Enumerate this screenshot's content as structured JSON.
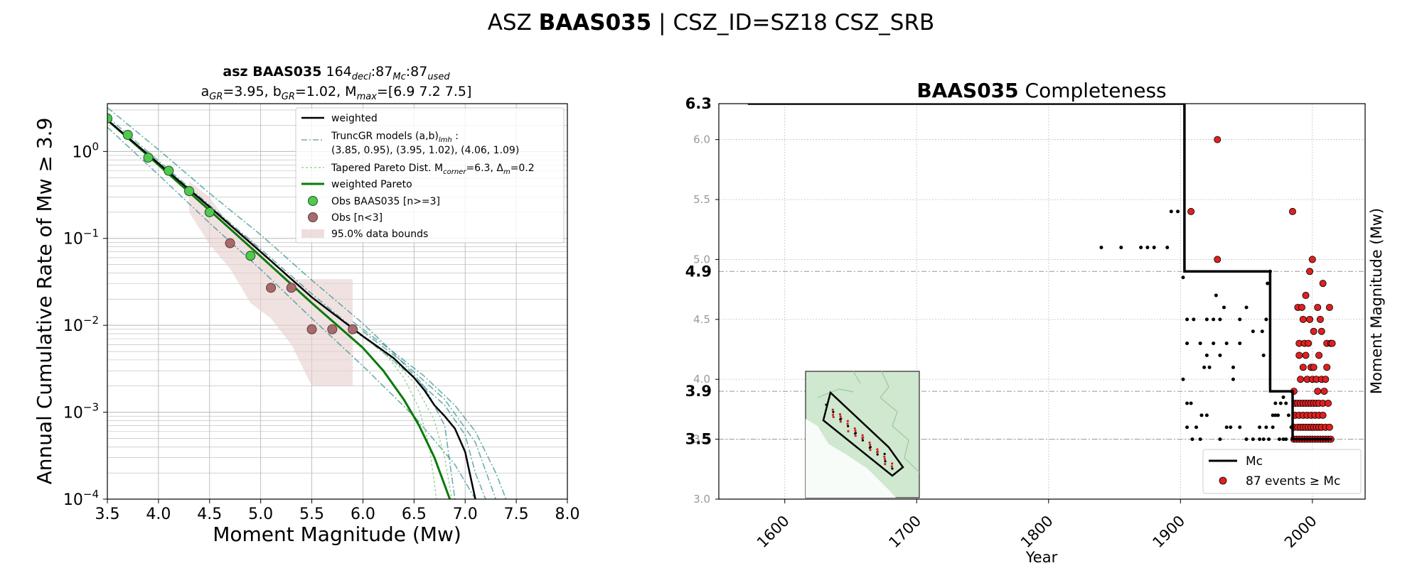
{
  "figure": {
    "suptitle": {
      "prefix": "ASZ ",
      "bold": "BAAS035",
      "suffix": " | CSZ_ID=SZ18 CSZ_SRB"
    }
  },
  "colors": {
    "weighted": "#000000",
    "trunc_gr": "#2e8b8b",
    "tapered": "#9bd39b",
    "weighted_pareto": "#0a7a0a",
    "obs_main": "#4fc94f",
    "obs_few": "#a86b6b",
    "band": "#e8cfcf",
    "mc_line": "#000000",
    "events": "#e02020",
    "inset_land": "#cfe8cf"
  },
  "chart_data": [
    {
      "type": "line",
      "id": "magnitude_frequency",
      "title_line1": {
        "bold": "asz BAAS035",
        "rest": "  164",
        "sub1": "decl",
        "mid1": ":87",
        "sub2": "Mc",
        "mid2": ":87",
        "sub3": "used"
      },
      "title_line2": {
        "a": "a",
        "a_sub": "GR",
        "a_val": "=3.95,  ",
        "b": "b",
        "b_sub": "GR",
        "b_val": "=1.02, ",
        "m": "M",
        "m_sub": "max",
        "m_val": "=[6.9 7.2 7.5]"
      },
      "xlabel": "Moment Magnitude (Mw)",
      "ylabel": "Annual Cumulative Rate of Mw  ≥  3.9",
      "xlim": [
        3.5,
        8.0
      ],
      "ylim_log10": [
        -4,
        0.55
      ],
      "xticks": [
        "3.5",
        "4.0",
        "4.5",
        "5.0",
        "5.5",
        "6.0",
        "6.5",
        "7.0",
        "7.5",
        "8.0"
      ],
      "yticks": [
        {
          "base": "10",
          "exp": "0"
        },
        {
          "base": "10",
          "exp": "−1"
        },
        {
          "base": "10",
          "exp": "−2"
        },
        {
          "base": "10",
          "exp": "−3"
        },
        {
          "base": "10",
          "exp": "−4"
        }
      ],
      "grid": true,
      "legend_position": "top-right",
      "legend": [
        {
          "label": "weighted"
        },
        {
          "label": "TruncGR models (a,b)",
          "sub": "lmh",
          "tail": " :"
        },
        {
          "label": " (3.85, 0.95), (3.95, 1.02), (4.06, 1.09)"
        },
        {
          "label": "Tapered Pareto Dist. M",
          "sub": "corner",
          "tail": "=6.3, Δ",
          "sub2": "m",
          "tail2": "=0.2"
        },
        {
          "label": "weighted Pareto"
        },
        {
          "label": "Obs BAAS035 [n>=3]"
        },
        {
          "label": "Obs [n<3]"
        },
        {
          "label": "95.0% data bounds"
        }
      ],
      "obs_main": [
        [
          3.5,
          2.4
        ],
        [
          3.7,
          1.55
        ],
        [
          3.9,
          0.85
        ],
        [
          4.1,
          0.6
        ],
        [
          4.3,
          0.35
        ],
        [
          4.5,
          0.2
        ],
        [
          4.9,
          0.063
        ]
      ],
      "obs_few": [
        [
          4.7,
          0.088
        ],
        [
          5.1,
          0.027
        ],
        [
          5.3,
          0.027
        ],
        [
          5.5,
          0.009
        ],
        [
          5.7,
          0.009
        ],
        [
          5.9,
          0.009
        ]
      ],
      "band": {
        "upper": [
          [
            4.3,
            0.45
          ],
          [
            4.5,
            0.3
          ],
          [
            4.7,
            0.14
          ],
          [
            4.9,
            0.1
          ],
          [
            5.1,
            0.05
          ],
          [
            5.3,
            0.034
          ],
          [
            5.5,
            0.034
          ],
          [
            5.7,
            0.034
          ],
          [
            5.9,
            0.034
          ]
        ],
        "lower": [
          [
            5.9,
            0.002
          ],
          [
            5.7,
            0.002
          ],
          [
            5.5,
            0.002
          ],
          [
            5.3,
            0.006
          ],
          [
            5.1,
            0.012
          ],
          [
            4.9,
            0.018
          ],
          [
            4.7,
            0.045
          ],
          [
            4.5,
            0.085
          ],
          [
            4.3,
            0.2
          ]
        ]
      },
      "series": [
        {
          "kind": "weighted",
          "values": [
            [
              3.5,
              2.3
            ],
            [
              4.0,
              0.73
            ],
            [
              4.5,
              0.23
            ],
            [
              5.0,
              0.07
            ],
            [
              5.5,
              0.021
            ],
            [
              6.0,
              0.0075
            ],
            [
              6.3,
              0.0042
            ],
            [
              6.5,
              0.0025
            ],
            [
              6.6,
              0.0018
            ],
            [
              6.7,
              0.0012
            ],
            [
              6.8,
              0.0009
            ],
            [
              6.9,
              0.00065
            ],
            [
              7.0,
              0.00035
            ],
            [
              7.1,
              0.0001
            ]
          ]
        },
        {
          "kind": "weighted_pareto",
          "values": [
            [
              3.5,
              2.3
            ],
            [
              4.0,
              0.7
            ],
            [
              4.5,
              0.21
            ],
            [
              5.0,
              0.062
            ],
            [
              5.5,
              0.018
            ],
            [
              6.0,
              0.0055
            ],
            [
              6.2,
              0.003
            ],
            [
              6.4,
              0.0014
            ],
            [
              6.55,
              0.0007
            ],
            [
              6.7,
              0.0003
            ],
            [
              6.85,
              0.0001
            ]
          ]
        },
        {
          "kind": "trunc_gr",
          "values": [
            [
              3.5,
              3.2
            ],
            [
              4.0,
              1.05
            ],
            [
              4.5,
              0.33
            ],
            [
              5.0,
              0.11
            ],
            [
              5.5,
              0.033
            ],
            [
              6.0,
              0.0105
            ],
            [
              6.3,
              0.0048
            ],
            [
              6.6,
              0.002
            ],
            [
              6.8,
              0.0007
            ],
            [
              6.9,
              0.0001
            ]
          ]
        },
        {
          "kind": "trunc_gr",
          "values": [
            [
              3.5,
              2.5
            ],
            [
              4.0,
              0.78
            ],
            [
              4.5,
              0.24
            ],
            [
              5.0,
              0.075
            ],
            [
              5.5,
              0.023
            ],
            [
              6.0,
              0.0075
            ],
            [
              6.5,
              0.0025
            ],
            [
              6.8,
              0.0012
            ],
            [
              7.0,
              0.00055
            ],
            [
              7.1,
              0.0002
            ],
            [
              7.2,
              0.0001
            ]
          ]
        },
        {
          "kind": "trunc_gr",
          "values": [
            [
              3.5,
              1.9
            ],
            [
              4.0,
              0.54
            ],
            [
              4.5,
              0.15
            ],
            [
              5.0,
              0.044
            ],
            [
              5.5,
              0.012
            ],
            [
              6.0,
              0.0034
            ],
            [
              6.5,
              0.0009
            ],
            [
              6.9,
              0.00025
            ],
            [
              7.1,
              0.0001
            ]
          ]
        },
        {
          "kind": "trunc_gr",
          "values": [
            [
              5.9,
              0.011
            ],
            [
              6.3,
              0.0049
            ],
            [
              6.6,
              0.0026
            ],
            [
              6.9,
              0.0012
            ],
            [
              7.1,
              0.0006
            ],
            [
              7.3,
              0.0002
            ],
            [
              7.4,
              0.0001
            ]
          ]
        },
        {
          "kind": "trunc_gr",
          "values": [
            [
              6.0,
              0.0085
            ],
            [
              6.4,
              0.0037
            ],
            [
              6.8,
              0.0014
            ],
            [
              7.1,
              0.00045
            ],
            [
              7.3,
              0.0001
            ]
          ]
        },
        {
          "kind": "tapered",
          "values": [
            [
              5.9,
              0.0088
            ],
            [
              6.2,
              0.005
            ],
            [
              6.4,
              0.0025
            ],
            [
              6.55,
              0.0011
            ],
            [
              6.65,
              0.0004
            ],
            [
              6.72,
              0.0001
            ]
          ]
        },
        {
          "kind": "tapered",
          "values": [
            [
              5.9,
              0.009
            ],
            [
              6.2,
              0.0052
            ],
            [
              6.5,
              0.0022
            ],
            [
              6.7,
              0.0008
            ],
            [
              6.8,
              0.0003
            ],
            [
              6.87,
              0.0001
            ]
          ]
        }
      ]
    },
    {
      "type": "scatter",
      "id": "completeness",
      "title": {
        "bold": "BAAS035",
        "rest": " Completeness"
      },
      "xlabel": "Year",
      "ylabel": "Moment Magnitude (Mw)",
      "xlim": [
        1550,
        2040
      ],
      "ylim": [
        3.0,
        6.3
      ],
      "xticks": [
        "1600",
        "1700",
        "1800",
        "1900",
        "2000"
      ],
      "yticks_small": [
        "3.0",
        "3.5",
        "4.0",
        "4.5",
        "5.0",
        "5.5",
        "6.0"
      ],
      "yticks_bold": [
        "6.3",
        "4.9",
        "3.9",
        "3.5"
      ],
      "grid": true,
      "legend_position": "bottom-right",
      "legend": [
        {
          "label": "Mc"
        },
        {
          "label": "87 events ≥ Mc"
        }
      ],
      "mc_step": [
        [
          1572,
          6.3
        ],
        [
          1903,
          6.3
        ],
        [
          1903,
          4.9
        ],
        [
          1968,
          4.9
        ],
        [
          1968,
          3.9
        ],
        [
          1985,
          3.9
        ],
        [
          1985,
          3.5
        ],
        [
          2015,
          3.5
        ]
      ],
      "events_above_mc": [
        [
          1928,
          6.0
        ],
        [
          1908,
          5.4
        ],
        [
          1985,
          5.4
        ],
        [
          1928,
          5.0
        ],
        [
          2000,
          5.0
        ],
        [
          1998,
          4.9
        ],
        [
          1989,
          4.6
        ],
        [
          1992,
          4.6
        ],
        [
          2004,
          4.6
        ],
        [
          2013,
          4.6
        ],
        [
          1995,
          4.7
        ],
        [
          2008,
          4.8
        ],
        [
          1993,
          4.5
        ],
        [
          1998,
          4.5
        ],
        [
          2001,
          4.4
        ],
        [
          2007,
          4.4
        ],
        [
          1990,
          4.3
        ],
        [
          1994,
          4.3
        ],
        [
          2011,
          4.3
        ],
        [
          2014,
          4.3
        ],
        [
          1995,
          4.2
        ],
        [
          2005,
          4.2
        ],
        [
          1999,
          4.1
        ],
        [
          2001,
          4.1
        ],
        [
          1991,
          4.0
        ],
        [
          1996,
          4.0
        ],
        [
          2000,
          4.0
        ],
        [
          2003,
          4.0
        ],
        [
          2007,
          4.0
        ],
        [
          2010,
          4.0
        ],
        [
          1986,
          3.9
        ],
        [
          2004,
          3.9
        ],
        [
          1987,
          3.8
        ],
        [
          1989,
          3.8
        ],
        [
          1991,
          3.8
        ],
        [
          1993,
          3.8
        ],
        [
          1995,
          3.8
        ],
        [
          1997,
          3.8
        ],
        [
          1999,
          3.8
        ],
        [
          2001,
          3.8
        ],
        [
          2003,
          3.8
        ],
        [
          2005,
          3.8
        ],
        [
          2008,
          3.8
        ],
        [
          2012,
          3.8
        ],
        [
          1987,
          3.7
        ],
        [
          1990,
          3.7
        ],
        [
          1993,
          3.7
        ],
        [
          1996,
          3.7
        ],
        [
          1999,
          3.7
        ],
        [
          2002,
          3.7
        ],
        [
          2005,
          3.7
        ],
        [
          2008,
          3.7
        ],
        [
          1986,
          3.6
        ],
        [
          1989,
          3.6
        ],
        [
          1991,
          3.6
        ],
        [
          1993,
          3.6
        ],
        [
          1995,
          3.6
        ],
        [
          1997,
          3.6
        ],
        [
          1999,
          3.6
        ],
        [
          2001,
          3.6
        ],
        [
          2003,
          3.6
        ],
        [
          2005,
          3.6
        ],
        [
          2007,
          3.6
        ],
        [
          2010,
          3.6
        ],
        [
          2013,
          3.6
        ],
        [
          1986,
          3.5
        ],
        [
          1988,
          3.5
        ],
        [
          1990,
          3.5
        ],
        [
          1992,
          3.5
        ],
        [
          1994,
          3.5
        ],
        [
          1996,
          3.5
        ],
        [
          1998,
          3.5
        ],
        [
          2000,
          3.5
        ],
        [
          2002,
          3.5
        ],
        [
          2004,
          3.5
        ],
        [
          2006,
          3.5
        ],
        [
          2008,
          3.5
        ],
        [
          2010,
          3.5
        ],
        [
          2012,
          3.5
        ],
        [
          2014,
          3.5
        ],
        [
          1990,
          4.2
        ],
        [
          2011,
          4.1
        ],
        [
          1997,
          4.3
        ],
        [
          2006,
          4.5
        ],
        [
          1993,
          4.1
        ],
        [
          2009,
          3.9
        ],
        [
          2015,
          4.3
        ]
      ],
      "events_below_mc": [
        [
          1840,
          5.1
        ],
        [
          1855,
          5.1
        ],
        [
          1870,
          5.1
        ],
        [
          1875,
          5.1
        ],
        [
          1880,
          5.1
        ],
        [
          1890,
          5.1
        ],
        [
          1893,
          5.4
        ],
        [
          1898,
          5.4
        ],
        [
          1902,
          4.85
        ],
        [
          1905,
          4.5
        ],
        [
          1910,
          4.5
        ],
        [
          1905,
          4.3
        ],
        [
          1920,
          4.5
        ],
        [
          1925,
          4.5
        ],
        [
          1930,
          4.5
        ],
        [
          1945,
          4.5
        ],
        [
          1950,
          4.6
        ],
        [
          1965,
          4.5
        ],
        [
          1915,
          4.3
        ],
        [
          1925,
          4.3
        ],
        [
          1935,
          4.3
        ],
        [
          1945,
          4.3
        ],
        [
          1920,
          4.2
        ],
        [
          1918,
          4.1
        ],
        [
          1922,
          4.1
        ],
        [
          1930,
          4.2
        ],
        [
          1940,
          4.1
        ],
        [
          1955,
          4.4
        ],
        [
          1962,
          4.4
        ],
        [
          1927,
          4.7
        ],
        [
          1933,
          4.6
        ],
        [
          1902,
          4.0
        ],
        [
          1940,
          4.0
        ],
        [
          1905,
          3.8
        ],
        [
          1908,
          3.8
        ],
        [
          1916,
          3.7
        ],
        [
          1920,
          3.7
        ],
        [
          1935,
          3.6
        ],
        [
          1938,
          3.6
        ],
        [
          1945,
          3.6
        ],
        [
          1960,
          3.6
        ],
        [
          1965,
          3.6
        ],
        [
          1905,
          3.6
        ],
        [
          1912,
          3.6
        ],
        [
          1930,
          3.5
        ],
        [
          1950,
          3.5
        ],
        [
          1955,
          3.5
        ],
        [
          1960,
          3.5
        ],
        [
          1963,
          3.5
        ],
        [
          1967,
          3.5
        ],
        [
          1975,
          3.5
        ],
        [
          1978,
          3.5
        ],
        [
          1980,
          3.5
        ],
        [
          1970,
          3.6
        ],
        [
          1972,
          3.7
        ],
        [
          1974,
          3.7
        ],
        [
          1976,
          3.8
        ],
        [
          1978,
          3.85
        ],
        [
          1980,
          3.8
        ],
        [
          1982,
          3.7
        ],
        [
          1972,
          3.8
        ],
        [
          1966,
          4.8
        ],
        [
          1963,
          4.2
        ],
        [
          1970,
          3.7
        ],
        [
          1984,
          3.6
        ],
        [
          1968,
          4.9
        ],
        [
          1909,
          3.5
        ],
        [
          1915,
          3.5
        ]
      ]
    }
  ]
}
